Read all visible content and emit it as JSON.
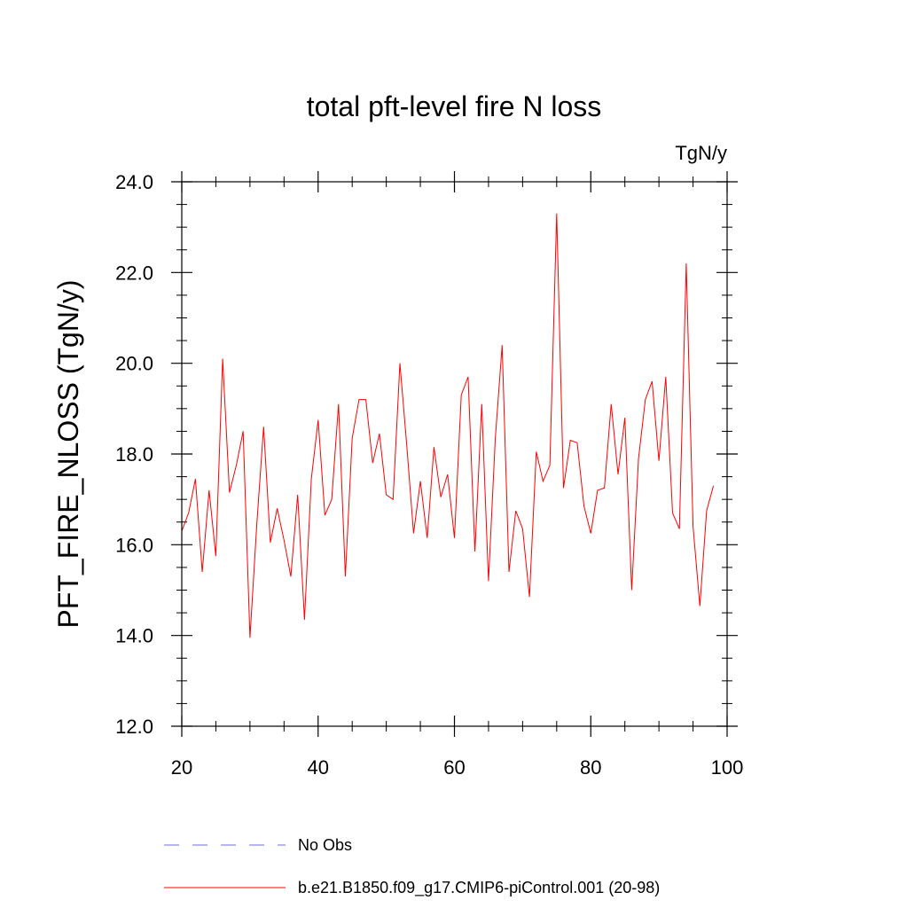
{
  "chart_data": {
    "type": "line",
    "title": "total pft-level fire N loss",
    "units_label": "TgN/y",
    "ylabel": "PFT_FIRE_NLOSS  (TgN/y)",
    "xlabel": "",
    "xlim": [
      20,
      100
    ],
    "ylim": [
      12.0,
      24.0
    ],
    "x_ticks": [
      20,
      40,
      60,
      80,
      100
    ],
    "x_tick_labels": [
      "20",
      "40",
      "60",
      "80",
      "100"
    ],
    "y_ticks": [
      12.0,
      14.0,
      16.0,
      18.0,
      20.0,
      22.0,
      24.0
    ],
    "y_tick_labels": [
      "12.0",
      "14.0",
      "16.0",
      "18.0",
      "20.0",
      "22.0",
      "24.0"
    ],
    "series": [
      {
        "name": "b.e21.B1850.f09_g17.CMIP6-piControl.001 (20-98)",
        "color": "#ff0000",
        "style": "solid",
        "x": [
          20,
          21,
          22,
          23,
          24,
          25,
          26,
          27,
          28,
          29,
          30,
          31,
          32,
          33,
          34,
          35,
          36,
          37,
          38,
          39,
          40,
          41,
          42,
          43,
          44,
          45,
          46,
          47,
          48,
          49,
          50,
          51,
          52,
          53,
          54,
          55,
          56,
          57,
          58,
          59,
          60,
          61,
          62,
          63,
          64,
          65,
          66,
          67,
          68,
          69,
          70,
          71,
          72,
          73,
          74,
          75,
          76,
          77,
          78,
          79,
          80,
          81,
          82,
          83,
          84,
          85,
          86,
          87,
          88,
          89,
          90,
          91,
          92,
          93,
          94,
          95,
          96,
          97,
          98
        ],
        "values": [
          16.3,
          16.7,
          17.45,
          15.4,
          17.2,
          15.75,
          20.1,
          17.15,
          17.75,
          18.5,
          13.95,
          16.45,
          18.6,
          16.05,
          16.8,
          16.1,
          15.3,
          17.1,
          14.35,
          17.45,
          18.75,
          16.65,
          17.0,
          19.1,
          15.3,
          18.35,
          19.2,
          19.2,
          17.8,
          18.45,
          17.1,
          17.0,
          20.0,
          18.2,
          16.25,
          17.4,
          16.15,
          18.15,
          17.05,
          17.55,
          16.15,
          19.3,
          19.7,
          15.85,
          19.1,
          15.2,
          18.35,
          20.4,
          15.4,
          16.75,
          16.35,
          14.85,
          18.05,
          17.4,
          17.75,
          23.3,
          17.25,
          18.3,
          18.25,
          16.85,
          16.25,
          17.2,
          17.25,
          19.1,
          17.55,
          18.8,
          15.0,
          17.9,
          19.2,
          19.6,
          17.85,
          19.7,
          16.7,
          16.35,
          22.2,
          16.4,
          14.65,
          16.75,
          17.3
        ]
      }
    ],
    "legend": [
      {
        "label": "No Obs",
        "color": "#6e6ed7",
        "style": "dashed"
      },
      {
        "label": "b.e21.B1850.f09_g17.CMIP6-piControl.001 (20-98)",
        "color": "#ff0000",
        "style": "solid"
      }
    ]
  }
}
